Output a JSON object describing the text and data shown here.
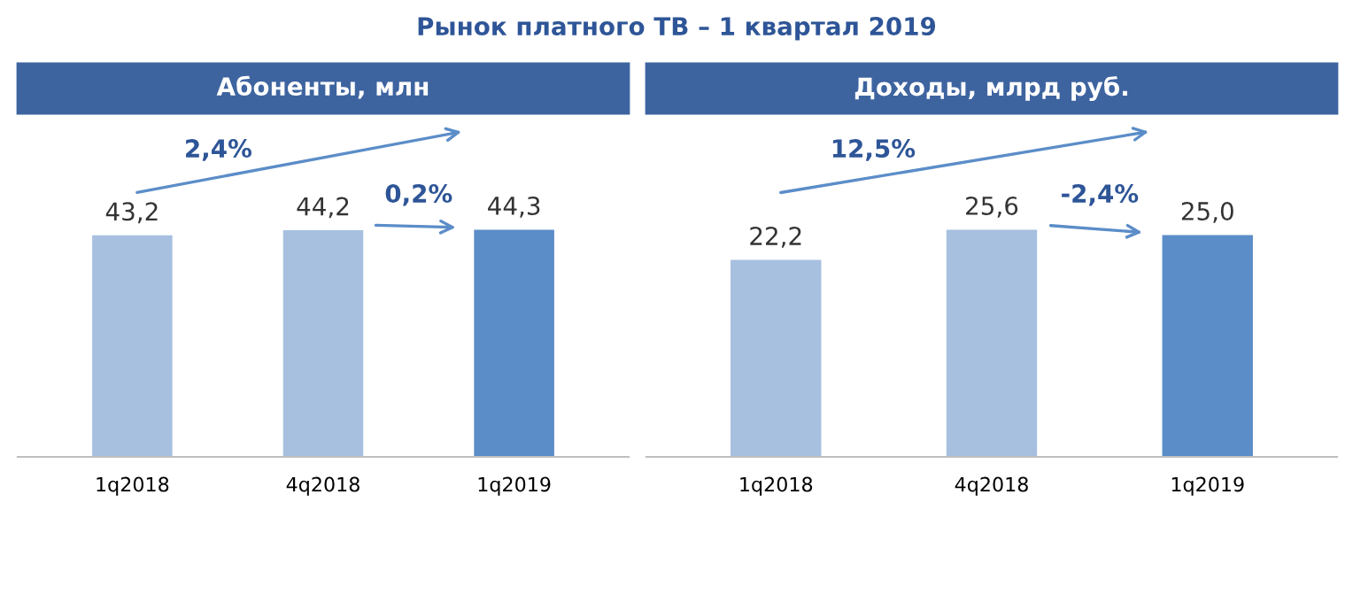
{
  "chart_data": [
    {
      "type": "bar",
      "title": "Рынок платного ТВ – 1 квартал 2019",
      "subtitle": "Абоненты, млн",
      "categories": [
        "1q2018",
        "4q2018",
        "1q2019"
      ],
      "values": [
        43.2,
        44.2,
        44.3
      ],
      "value_labels": [
        "43,2",
        "44,2",
        "44,3"
      ],
      "colors": [
        "#a7c0e0",
        "#a7c0e0",
        "#5b8dc8"
      ],
      "tick_labels": "x",
      "annotations": [
        "2,4%",
        "0,2%"
      ]
    },
    {
      "type": "bar",
      "subtitle": "Доходы, млрд руб.",
      "categories": [
        "1q2018",
        "4q2018",
        "1q2019"
      ],
      "values": [
        22.2,
        25.6,
        25.0
      ],
      "value_labels": [
        "22,2",
        "25,6",
        "25,0"
      ],
      "colors": [
        "#a7c0e0",
        "#a7c0e0",
        "#5b8dc8"
      ],
      "tick_labels": "x",
      "annotations": [
        "12,5%",
        "-2,4%"
      ]
    }
  ]
}
